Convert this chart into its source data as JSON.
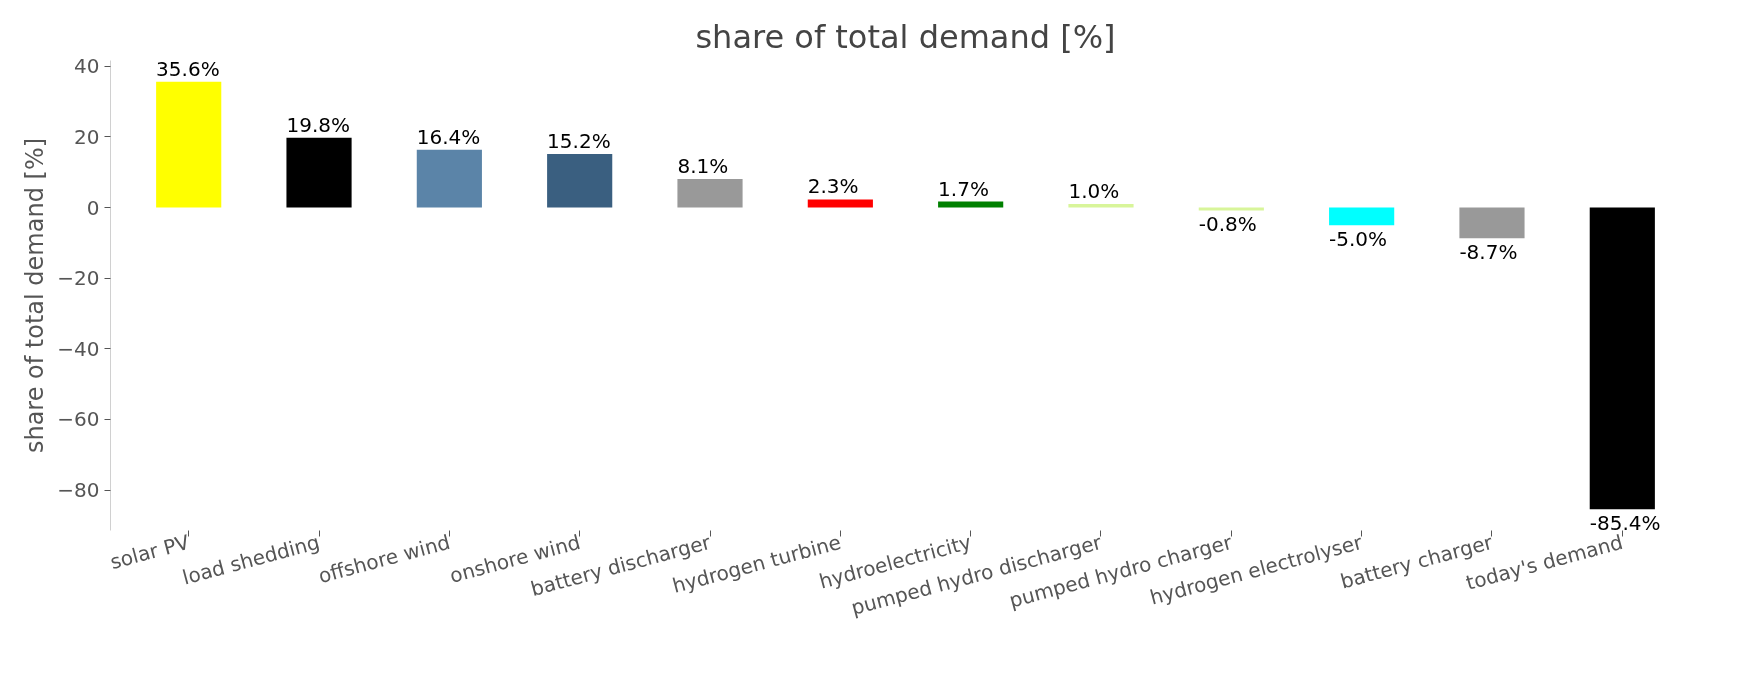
{
  "chart_data": {
    "type": "bar",
    "title": "share of total demand [%]",
    "ylabel": "share of total demand [%]",
    "categories": [
      "solar PV",
      "load shedding",
      "offshore wind",
      "onshore wind",
      "battery discharger",
      "hydrogen turbine",
      "hydroelectricity",
      "pumped hydro discharger",
      "pumped hydro charger",
      "hydrogen electrolyser",
      "battery charger",
      "today's demand"
    ],
    "values": [
      35.6,
      19.8,
      16.4,
      15.2,
      8.1,
      2.3,
      1.7,
      1.0,
      -0.8,
      -5.0,
      -8.7,
      -85.4
    ],
    "colors": [
      "#ffff00",
      "#000000",
      "#5b84a8",
      "#3a5f80",
      "#999999",
      "#ff0000",
      "#008000",
      "#d8f59a",
      "#d8f59a",
      "#00ffff",
      "#999999",
      "#000000"
    ],
    "value_labels": [
      "35.6%",
      "19.8%",
      "16.4%",
      "15.2%",
      "8.1%",
      "2.3%",
      "1.7%",
      "1.0%",
      "-0.8%",
      "-5.0%",
      "-8.7%",
      "-85.4%"
    ],
    "ylim": [
      -91.45,
      41.65
    ],
    "yticks": [
      {
        "value": -80,
        "label": "−80"
      },
      {
        "value": -60,
        "label": "−60"
      },
      {
        "value": -40,
        "label": "−40"
      },
      {
        "value": -20,
        "label": "−20"
      },
      0,
      20,
      40
    ],
    "grid": false
  }
}
